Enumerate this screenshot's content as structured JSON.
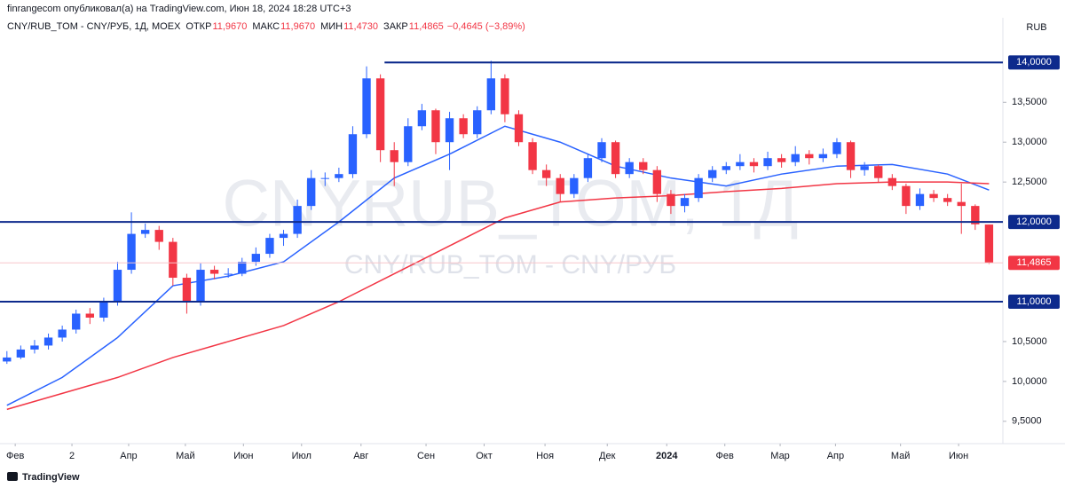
{
  "header": "finrangecom опубликовал(а) на TradingView.com, Июн 18, 2024 18:28 UTC+3",
  "footer": "TradingView",
  "chart_data": {
    "type": "candlestick",
    "symbol": "CNY/RUB_TOM - CNY/РУБ, 1Д, MOEX",
    "legend": {
      "open_label": "ОТКР",
      "open": "11,9670",
      "high_label": "МАКС",
      "high": "11,9670",
      "low_label": "МИН",
      "low": "11,4730",
      "close_label": "ЗАКР",
      "close": "11,4865",
      "change": "−0,4645 (−3,89%)"
    },
    "watermark": "CNYRUB_TOM, 1Д",
    "watermark_sub": "CNY/RUB_TOM - CNY/РУБ",
    "currency": "RUB",
    "up_color": "#2962ff",
    "down_color": "#f23645",
    "candles": [
      [
        10.25,
        10.38,
        10.22,
        10.3
      ],
      [
        10.3,
        10.45,
        10.28,
        10.4
      ],
      [
        10.4,
        10.52,
        10.35,
        10.45
      ],
      [
        10.45,
        10.6,
        10.4,
        10.55
      ],
      [
        10.55,
        10.7,
        10.5,
        10.65
      ],
      [
        10.65,
        10.9,
        10.6,
        10.85
      ],
      [
        10.85,
        10.92,
        10.72,
        10.8
      ],
      [
        10.8,
        11.05,
        10.75,
        11.0
      ],
      [
        11.0,
        11.5,
        10.95,
        11.4
      ],
      [
        11.4,
        12.12,
        11.35,
        11.85
      ],
      [
        11.85,
        11.98,
        11.8,
        11.9
      ],
      [
        11.9,
        11.95,
        11.65,
        11.75
      ],
      [
        11.75,
        11.8,
        11.2,
        11.3
      ],
      [
        11.3,
        11.35,
        10.85,
        11.0
      ],
      [
        11.0,
        11.48,
        10.95,
        11.4
      ],
      [
        11.4,
        11.45,
        11.28,
        11.35
      ],
      [
        11.35,
        11.42,
        11.3,
        11.35
      ],
      [
        11.35,
        11.55,
        11.32,
        11.5
      ],
      [
        11.5,
        11.68,
        11.45,
        11.6
      ],
      [
        11.6,
        11.85,
        11.55,
        11.8
      ],
      [
        11.8,
        11.9,
        11.7,
        11.85
      ],
      [
        11.85,
        12.28,
        11.8,
        12.2
      ],
      [
        12.2,
        12.65,
        12.15,
        12.55
      ],
      [
        12.55,
        12.62,
        12.45,
        12.55
      ],
      [
        12.55,
        12.68,
        12.5,
        12.6
      ],
      [
        12.6,
        13.2,
        12.55,
        13.1
      ],
      [
        13.1,
        13.95,
        13.05,
        13.8
      ],
      [
        13.8,
        13.85,
        12.75,
        12.9
      ],
      [
        12.9,
        13.0,
        12.45,
        12.75
      ],
      [
        12.75,
        13.3,
        12.7,
        13.2
      ],
      [
        13.2,
        13.48,
        13.15,
        13.4
      ],
      [
        13.4,
        13.42,
        12.85,
        13.0
      ],
      [
        13.0,
        13.38,
        12.65,
        13.3
      ],
      [
        13.3,
        13.35,
        13.05,
        13.1
      ],
      [
        13.1,
        13.45,
        13.05,
        13.4
      ],
      [
        13.4,
        14.02,
        13.35,
        13.8
      ],
      [
        13.8,
        13.85,
        13.25,
        13.35
      ],
      [
        13.35,
        13.4,
        12.95,
        13.0
      ],
      [
        13.0,
        13.05,
        12.6,
        12.65
      ],
      [
        12.65,
        12.72,
        12.45,
        12.55
      ],
      [
        12.55,
        12.6,
        12.25,
        12.35
      ],
      [
        12.35,
        12.6,
        12.3,
        12.55
      ],
      [
        12.55,
        12.85,
        12.5,
        12.8
      ],
      [
        12.8,
        13.05,
        12.75,
        13.0
      ],
      [
        13.0,
        13.02,
        12.55,
        12.6
      ],
      [
        12.6,
        12.8,
        12.55,
        12.75
      ],
      [
        12.75,
        12.8,
        12.6,
        12.65
      ],
      [
        12.65,
        12.7,
        12.25,
        12.35
      ],
      [
        12.35,
        12.4,
        12.1,
        12.2
      ],
      [
        12.2,
        12.35,
        12.12,
        12.3
      ],
      [
        12.3,
        12.6,
        12.25,
        12.55
      ],
      [
        12.55,
        12.7,
        12.5,
        12.65
      ],
      [
        12.65,
        12.75,
        12.6,
        12.7
      ],
      [
        12.7,
        12.85,
        12.65,
        12.75
      ],
      [
        12.75,
        12.8,
        12.62,
        12.7
      ],
      [
        12.7,
        12.88,
        12.65,
        12.8
      ],
      [
        12.8,
        12.85,
        12.68,
        12.75
      ],
      [
        12.75,
        12.95,
        12.7,
        12.85
      ],
      [
        12.85,
        12.9,
        12.72,
        12.8
      ],
      [
        12.8,
        12.92,
        12.75,
        12.85
      ],
      [
        12.85,
        13.05,
        12.8,
        13.0
      ],
      [
        13.0,
        13.02,
        12.55,
        12.65
      ],
      [
        12.65,
        12.75,
        12.58,
        12.7
      ],
      [
        12.7,
        12.72,
        12.5,
        12.55
      ],
      [
        12.55,
        12.6,
        12.4,
        12.45
      ],
      [
        12.45,
        12.48,
        12.1,
        12.2
      ],
      [
        12.2,
        12.42,
        12.15,
        12.35
      ],
      [
        12.35,
        12.4,
        12.25,
        12.3
      ],
      [
        12.3,
        12.35,
        12.2,
        12.25
      ],
      [
        12.25,
        12.48,
        11.85,
        12.2
      ],
      [
        12.2,
        12.22,
        11.9,
        11.97
      ],
      [
        11.967,
        11.967,
        11.473,
        11.4865
      ]
    ],
    "series": [
      {
        "color": "#2962ff",
        "x": [
          0,
          4,
          8,
          12,
          16,
          20,
          24,
          28,
          32,
          36,
          40,
          44,
          48,
          52,
          56,
          60,
          64,
          68,
          71
        ],
        "values": [
          9.7,
          10.05,
          10.55,
          11.2,
          11.32,
          11.5,
          12.0,
          12.55,
          12.85,
          13.2,
          13.0,
          12.7,
          12.55,
          12.45,
          12.6,
          12.7,
          12.72,
          12.6,
          12.4
        ]
      },
      {
        "color": "#f23645",
        "x": [
          0,
          4,
          8,
          12,
          16,
          20,
          24,
          28,
          32,
          36,
          40,
          44,
          48,
          52,
          56,
          60,
          64,
          68,
          71
        ],
        "values": [
          9.65,
          9.85,
          10.05,
          10.3,
          10.5,
          10.7,
          11.0,
          11.35,
          11.7,
          12.05,
          12.25,
          12.3,
          12.33,
          12.38,
          12.42,
          12.48,
          12.5,
          12.5,
          12.48
        ]
      }
    ],
    "levels": [
      {
        "value": 14,
        "label": "14,0000",
        "from": 27.3
      },
      {
        "value": 12,
        "label": "12,0000"
      },
      {
        "value": 11,
        "label": "11,0000"
      }
    ],
    "level_color": "#0d2a8c",
    "xlim": [
      -0.5,
      72
    ],
    "ylim": [
      9.22,
      14.56
    ],
    "xticks": [
      {
        "value": 0.6,
        "label": "Фев"
      },
      {
        "value": 4.7,
        "label": "2"
      },
      {
        "value": 8.8,
        "label": "Апр"
      },
      {
        "value": 12.9,
        "label": "Май"
      },
      {
        "value": 17.1,
        "label": "Июн"
      },
      {
        "value": 21.3,
        "label": "Июл"
      },
      {
        "value": 25.6,
        "label": "Авг"
      },
      {
        "value": 30.3,
        "label": "Сен"
      },
      {
        "value": 34.5,
        "label": "Окт"
      },
      {
        "value": 38.9,
        "label": "Ноя"
      },
      {
        "value": 43.4,
        "label": "Дек"
      },
      {
        "value": 47.7,
        "label": "2024"
      },
      {
        "value": 51.9,
        "label": "Фев"
      },
      {
        "value": 55.9,
        "label": "Мар"
      },
      {
        "value": 59.9,
        "label": "Апр"
      },
      {
        "value": 64.6,
        "label": "Май"
      },
      {
        "value": 68.8,
        "label": "Июн"
      }
    ],
    "yticks": [
      {
        "value": 9.5,
        "label": "9,5000"
      },
      {
        "value": 10,
        "label": "10,0000"
      },
      {
        "value": 10.5,
        "label": "10,5000"
      },
      {
        "value": 12.5,
        "label": "12,5000"
      },
      {
        "value": 13,
        "label": "13,0000"
      },
      {
        "value": 13.5,
        "label": "13,5000"
      }
    ]
  }
}
